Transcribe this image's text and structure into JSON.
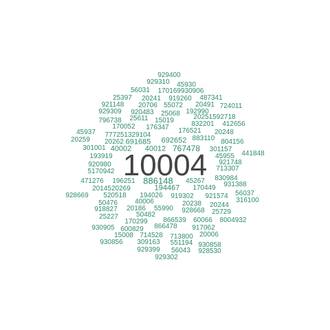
{
  "colors": {
    "primary": "#444444",
    "accent": "#2e8b6e"
  },
  "words": [
    "10004",
    "886148",
    "767478",
    "929400",
    "929310",
    "45930",
    "56031",
    "170169930906",
    "25397",
    "20241",
    "919260",
    "487341",
    "921148",
    "20706",
    "55072",
    "20491",
    "724011",
    "929309",
    "920483",
    "25068",
    "192990",
    "796738",
    "25611",
    "15019",
    "20251592718",
    "170052",
    "176347",
    "832201",
    "412656",
    "45937",
    "777251329104",
    "176521",
    "20248",
    "20259",
    "20262",
    "691685",
    "692652",
    "883110",
    "804156",
    "301001",
    "40002",
    "40012",
    "301157",
    "193919",
    "45955",
    "441848",
    "921748",
    "920980",
    "5170942",
    "713307",
    "471276",
    "196251",
    "45267",
    "830984",
    "194467",
    "931388",
    "2014520269",
    "170449",
    "56037",
    "928669",
    "520518",
    "194026",
    "919302",
    "921574",
    "316100",
    "50476",
    "40006",
    "20238",
    "20244",
    "918827",
    "20186",
    "55990",
    "928668",
    "25729",
    "25227",
    "50482",
    "170299",
    "866539",
    "60066",
    "8004932",
    "930905",
    "600829",
    "866478",
    "917062",
    "15008",
    "714528",
    "713800",
    "20006",
    "930856",
    "309163",
    "551194",
    "930858",
    "929399",
    "56043",
    "928530",
    "929302"
  ]
}
